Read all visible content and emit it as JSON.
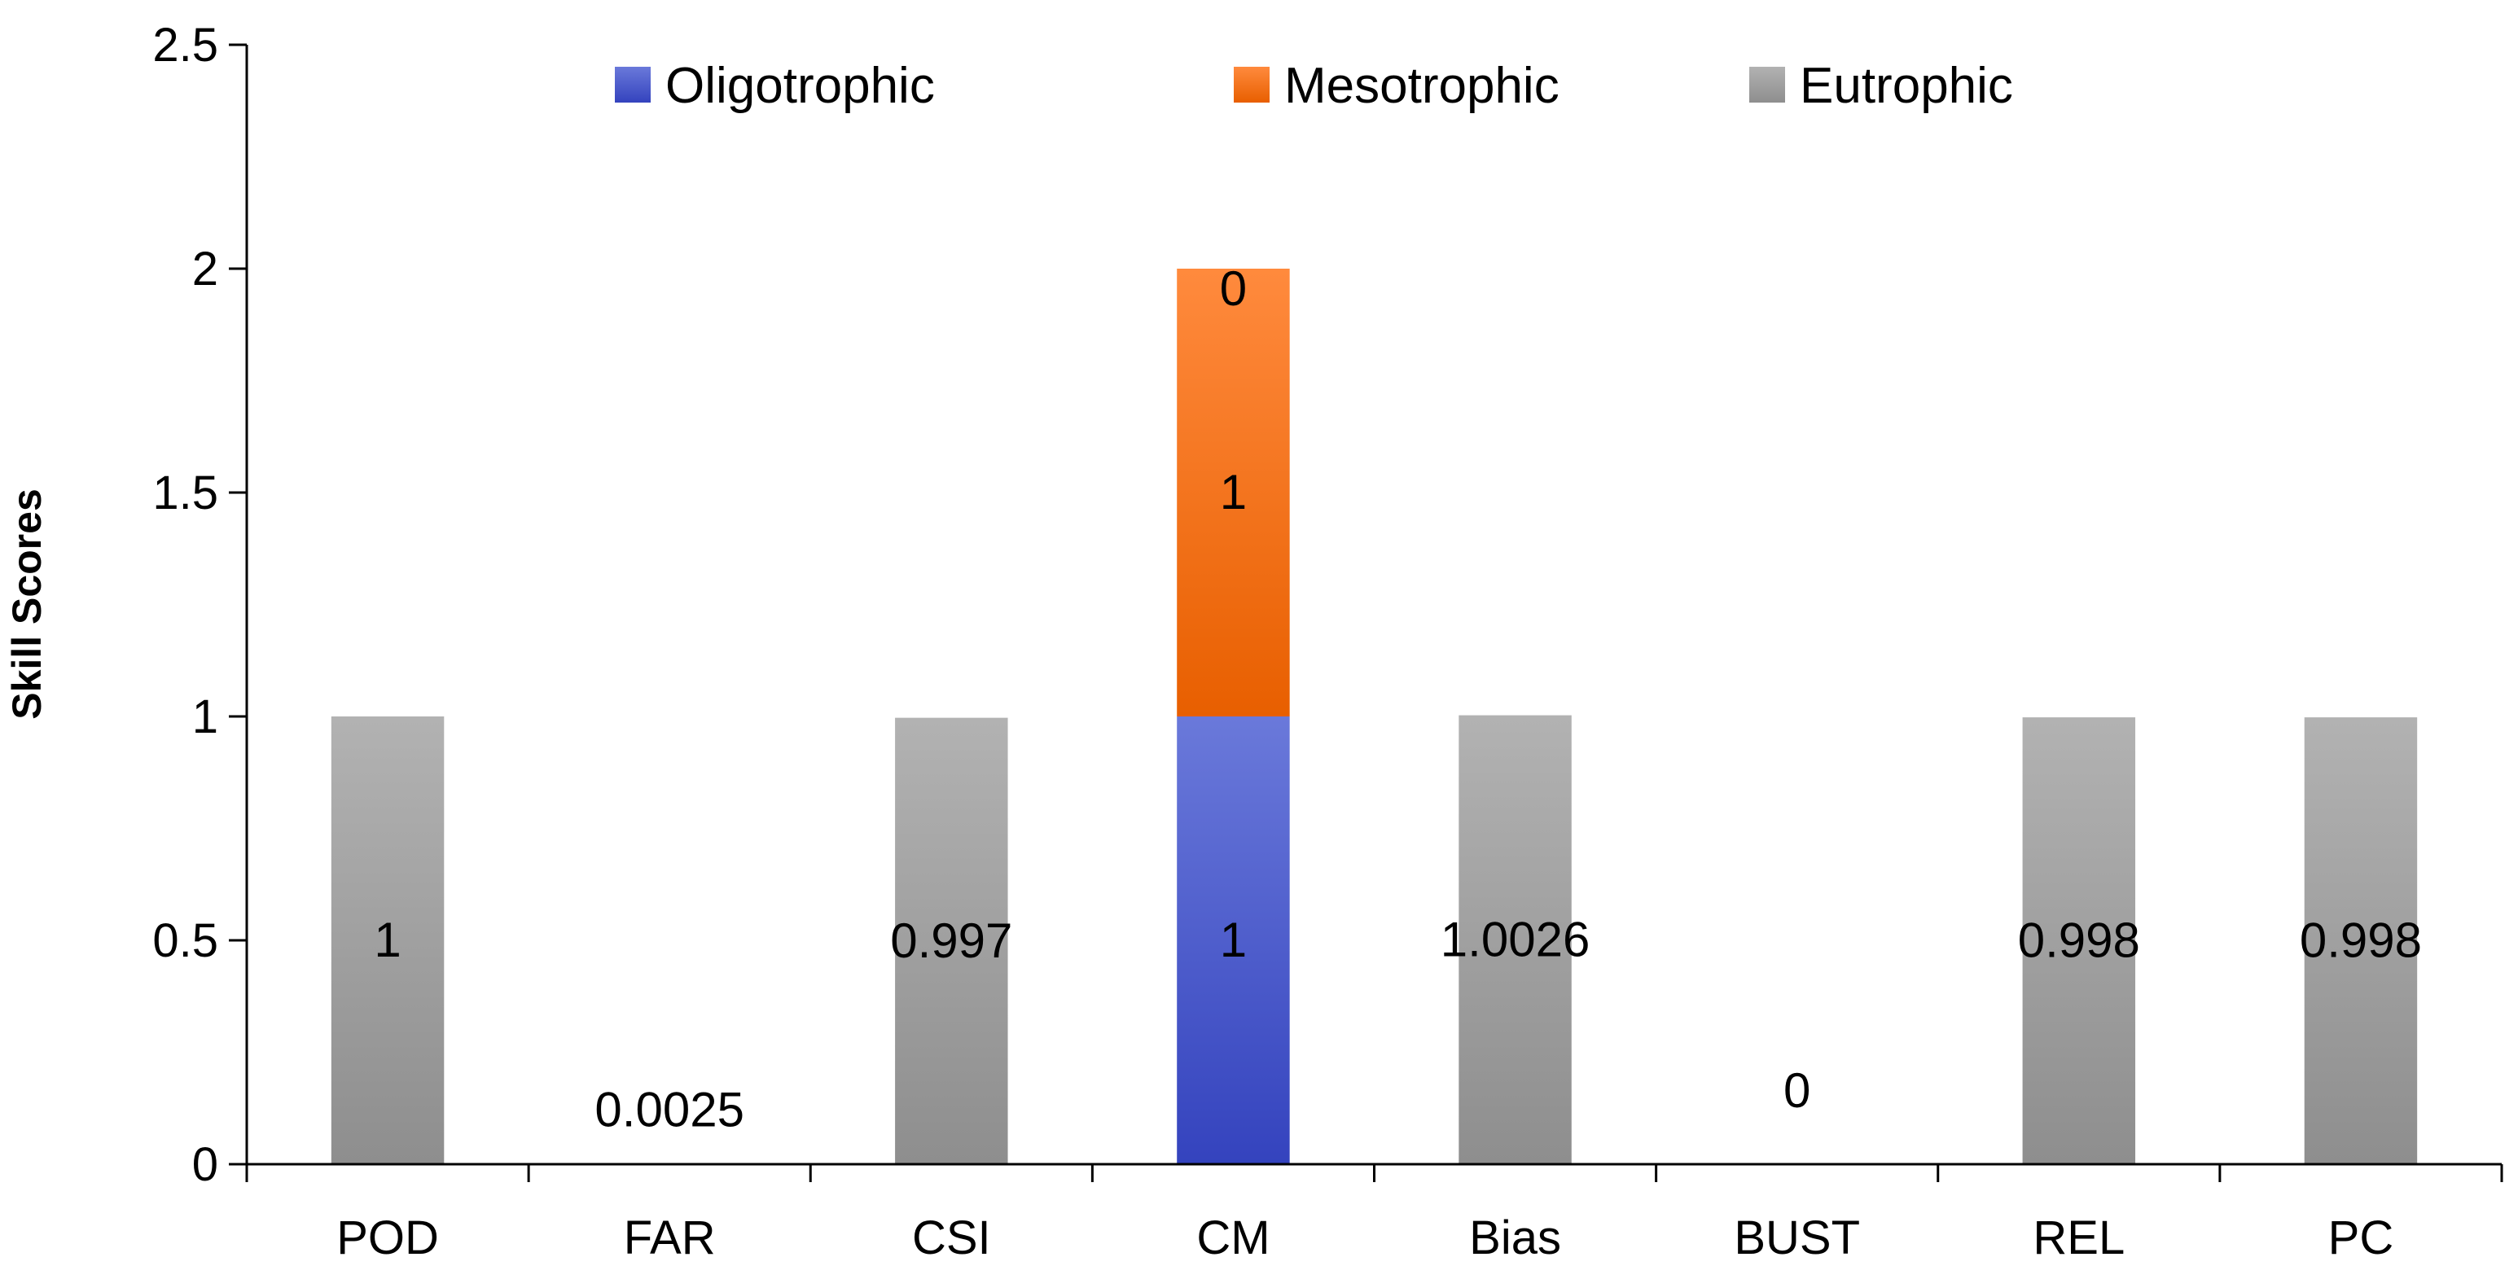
{
  "chart_data": {
    "type": "bar",
    "stacked": true,
    "categories": [
      "POD",
      "FAR",
      "CSI",
      "CM",
      "Bias",
      "BUST",
      "REL",
      "PC"
    ],
    "series": [
      {
        "name": "Oligotrophic",
        "color": "#3F51C9",
        "values": [
          0,
          0,
          0,
          1,
          0,
          0,
          0,
          0
        ],
        "labels": [
          null,
          null,
          null,
          "1",
          null,
          null,
          null,
          null
        ]
      },
      {
        "name": "Mesotrophic",
        "color": "#F76A0E",
        "values": [
          0,
          0,
          0,
          1,
          0,
          0,
          0,
          0
        ],
        "labels": [
          null,
          null,
          null,
          "1",
          null,
          null,
          null,
          null
        ]
      },
      {
        "name": "Eutrophic",
        "color": "#A6A6A6",
        "values": [
          1,
          0.0025,
          0.997,
          0,
          1.0026,
          0,
          0.998,
          0.998
        ],
        "labels": [
          "1",
          "0.0025",
          "0.997",
          "0",
          "1.0026",
          "0",
          "0.998",
          "0.998"
        ]
      }
    ],
    "xlabel": "",
    "ylabel": "Skill Scores",
    "ylim": [
      0,
      2.5
    ],
    "yticks": [
      "0",
      "0.5",
      "1",
      "1.5",
      "2",
      "2.5"
    ],
    "ytick_values": [
      0,
      0.5,
      1,
      1.5,
      2,
      2.5
    ],
    "legend_position": "top",
    "grid": false
  }
}
